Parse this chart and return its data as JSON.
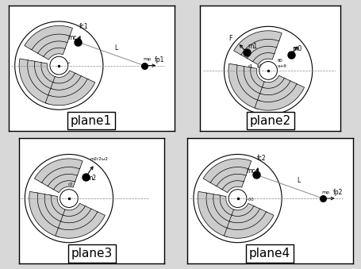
{
  "bg_color": "#d8d8d8",
  "panel_bg": "#ffffff",
  "border_color": "#000000",
  "planes": [
    "plane1",
    "plane2",
    "plane3",
    "plane4"
  ],
  "label_fontsize": 11,
  "annotation_fontsize": 5.5,
  "small_fontsize": 4.5
}
